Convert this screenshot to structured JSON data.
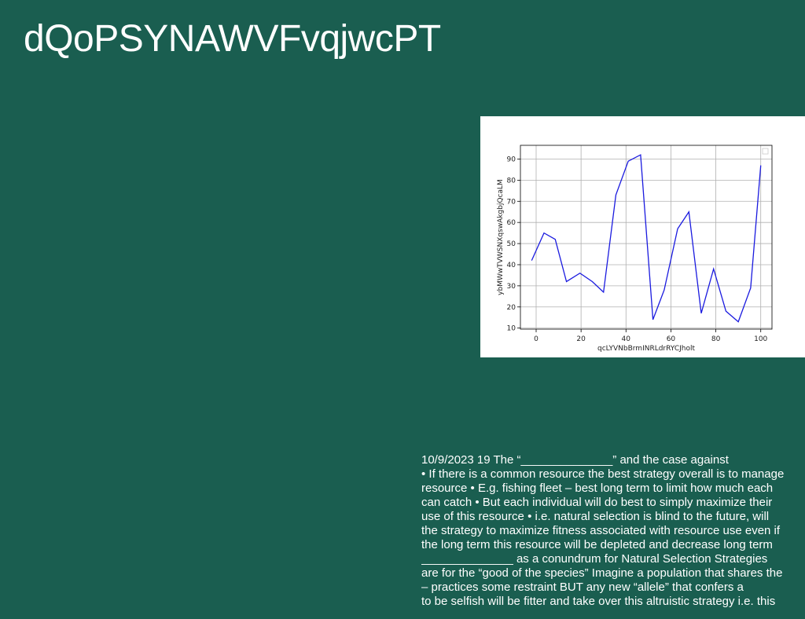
{
  "slide": {
    "title": "dQoPSYNAWVFvqjwcPT",
    "lines": [
      "10/9/2023 19 The “______________” and the case against",
      "• If there is a common resource the best strategy overall is to manage",
      "resource • E.g. fishing fleet – best long term to limit how much each",
      "can catch • But each individual will do best to simply maximize their",
      "use of this resource • i.e. natural selection is blind to the future, will",
      "the strategy to maximize fitness associated with resource use even if",
      "the long term this resource will be depleted and decrease long term",
      "______________ as a conundrum for Natural Selection Strategies",
      "are for the “good of the species” Imagine a population that shares the",
      "– practices some restraint BUT any new “allele” that confers a",
      "to be selfish will be fitter and take over this altruistic strategy i.e. this"
    ]
  },
  "chart_data": {
    "type": "line",
    "xlabel": "qcLYVNbBrmINRLdrRYCJholt",
    "ylabel": "ybMWwTVWSNXqswAkgbjQcaLM",
    "x": [
      -2,
      3.5,
      8.5,
      13.5,
      19.5,
      25,
      30,
      35.5,
      41,
      46.5,
      52,
      57,
      63,
      68,
      73.5,
      79,
      84.5,
      90,
      95.5,
      100
    ],
    "y": [
      42,
      55,
      52,
      32,
      36,
      32,
      27,
      73,
      89,
      92,
      14,
      28,
      57,
      65,
      17,
      38,
      18,
      13,
      29,
      87
    ],
    "xlim": [
      -7,
      105
    ],
    "ylim": [
      9.5,
      96.5
    ],
    "xticks": [
      0,
      20,
      40,
      60,
      80,
      100
    ],
    "yticks": [
      10,
      20,
      30,
      40,
      50,
      60,
      70,
      80,
      90
    ],
    "grid": true,
    "legend": "top-right",
    "line_color": "#1a1adf"
  }
}
